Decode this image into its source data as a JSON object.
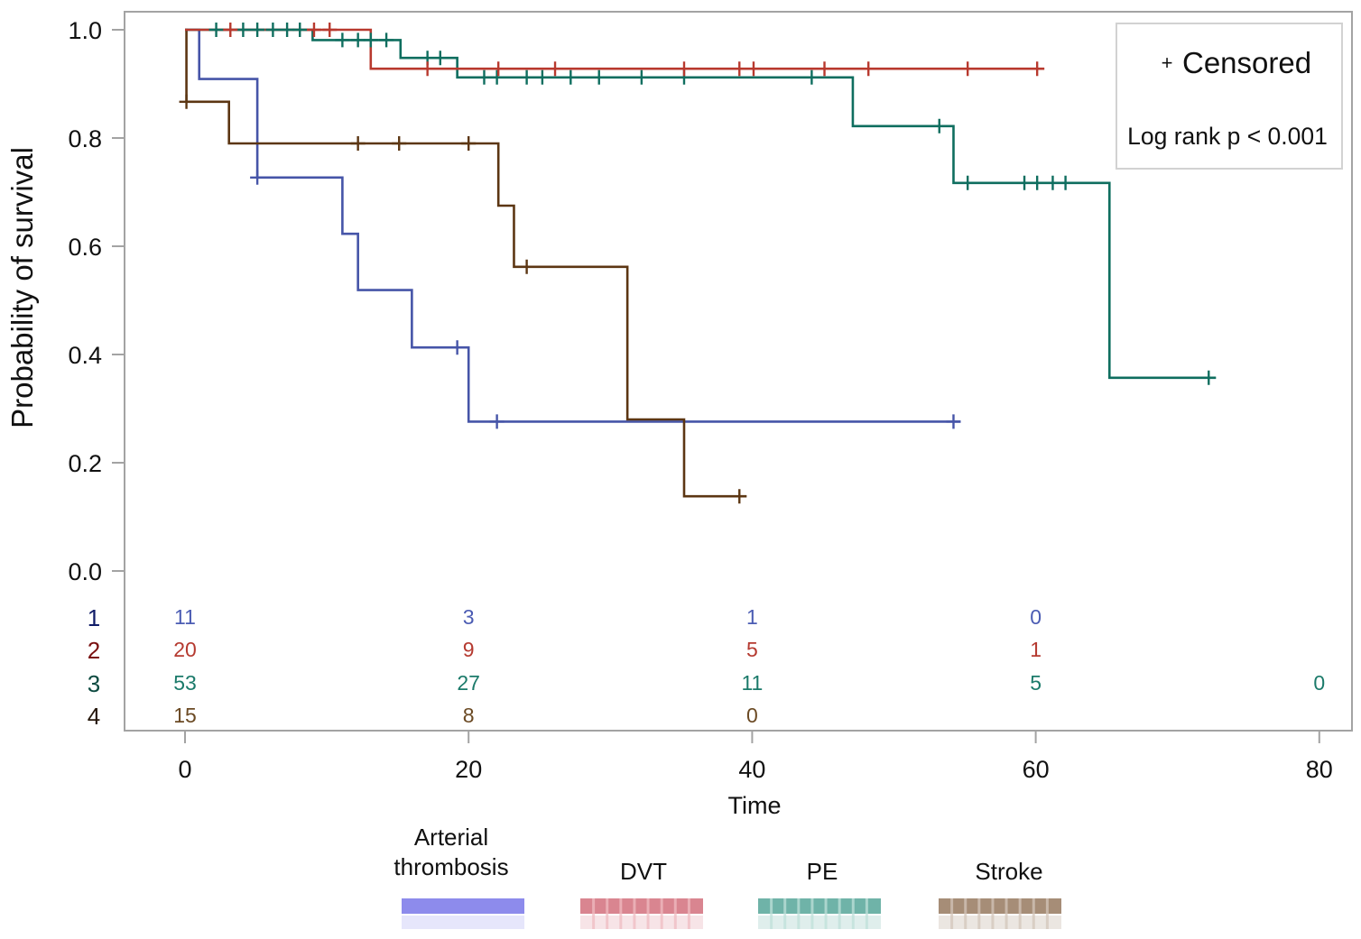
{
  "chart_data": {
    "type": "line",
    "subtype": "kaplan-meier",
    "title": "",
    "xlabel": "Time",
    "ylabel": "Probability of survival",
    "grid": false,
    "x_axis": {
      "range": [
        -4.3,
        82.3
      ],
      "ticks": [
        0,
        20,
        40,
        60,
        80
      ],
      "tick_labels": [
        "0",
        "20",
        "40",
        "60",
        "80"
      ]
    },
    "y_axis": {
      "range": [
        0,
        1.0
      ],
      "ticks": [
        0,
        0.2,
        0.4,
        0.6,
        0.8,
        1.0
      ],
      "tick_labels": [
        "0.0",
        "0.2",
        "0.4",
        "0.6",
        "0.8",
        "1.0"
      ]
    },
    "series": [
      {
        "key": "1",
        "name": "Arterial thrombosis",
        "color": "#4655a8",
        "start": 1.0,
        "steps": [
          [
            1.0,
            0.909
          ],
          [
            5.1,
            0.727
          ],
          [
            11.1,
            0.623
          ],
          [
            12.2,
            0.519
          ],
          [
            16.0,
            0.413
          ],
          [
            20.0,
            0.276
          ]
        ],
        "end_time": 54.7,
        "censored_times": [
          5.1,
          19.2,
          22.0,
          54.2
        ]
      },
      {
        "key": "4",
        "name": "Stroke",
        "color": "#5c3613",
        "start": 1.0,
        "steps": [
          [
            0.1,
            0.867
          ],
          [
            3.1,
            0.79
          ],
          [
            22.1,
            0.675
          ],
          [
            23.2,
            0.562
          ],
          [
            31.2,
            0.28
          ],
          [
            35.2,
            0.138
          ]
        ],
        "end_time": 39.6,
        "censored_times": [
          0.1,
          12.2,
          15.1,
          20.0,
          24.1,
          39.1
        ]
      },
      {
        "key": "3",
        "name": "PE",
        "color": "#0f6e5f",
        "start": 1.0,
        "steps": [
          [
            9.0,
            0.981
          ],
          [
            15.2,
            0.948
          ],
          [
            19.2,
            0.912
          ],
          [
            47.1,
            0.822
          ],
          [
            54.2,
            0.717
          ],
          [
            65.2,
            0.357
          ]
        ],
        "end_time": 72.7,
        "censored_times": [
          2.2,
          4.1,
          5.1,
          6.2,
          7.2,
          8.1,
          11.1,
          12.2,
          13.1,
          14.2,
          17.1,
          18.0,
          21.1,
          22.0,
          24.1,
          25.2,
          27.2,
          29.2,
          32.2,
          35.2,
          44.2,
          53.2,
          55.2,
          59.2,
          60.1,
          61.2,
          62.1,
          72.2
        ]
      },
      {
        "key": "2",
        "name": "DVT",
        "color": "#b8392e",
        "start": 1.0,
        "steps": [
          [
            13.1,
            0.928
          ]
        ],
        "end_time": 60.6,
        "censored_times": [
          3.2,
          9.1,
          10.2,
          17.1,
          22.1,
          26.1,
          35.2,
          39.1,
          40.1,
          45.1,
          48.2,
          55.2,
          60.1
        ]
      }
    ],
    "inset_legend": {
      "placement": "top-right",
      "censored_symbol": "+",
      "censored_label": "Censored",
      "stat_label": "Log rank p < 0.001"
    },
    "at_risk": {
      "times": [
        0,
        20,
        40,
        60,
        80
      ],
      "rows": [
        {
          "label": "1",
          "label_color": "#101c68",
          "value_color": "#4b5cb3",
          "values": [
            11,
            3,
            1,
            0,
            null
          ]
        },
        {
          "label": "2",
          "label_color": "#7a1010",
          "value_color": "#b53a30",
          "values": [
            20,
            9,
            5,
            1,
            null
          ]
        },
        {
          "label": "3",
          "label_color": "#0c4a40",
          "value_color": "#1b7a6a",
          "values": [
            53,
            27,
            11,
            5,
            0
          ]
        },
        {
          "label": "4",
          "label_color": "#24160a",
          "value_color": "#6b4a24",
          "values": [
            15,
            8,
            0,
            null,
            null
          ]
        }
      ]
    },
    "legend": {
      "placement": "bottom",
      "entries": [
        {
          "key": "1",
          "label_lines": [
            "Arterial",
            "thrombosis"
          ],
          "swatch_color": "#8d8bec",
          "stripe_color": null
        },
        {
          "key": "2",
          "label_lines": [
            "DVT"
          ],
          "swatch_color": "#d98590",
          "stripe_color": "#efbcc2"
        },
        {
          "key": "3",
          "label_lines": [
            "PE"
          ],
          "swatch_color": "#6fb3a8",
          "stripe_color": "#bfe0da"
        },
        {
          "key": "4",
          "label_lines": [
            "Stroke"
          ],
          "swatch_color": "#a68d77",
          "stripe_color": "#d3c6ba"
        }
      ]
    }
  }
}
